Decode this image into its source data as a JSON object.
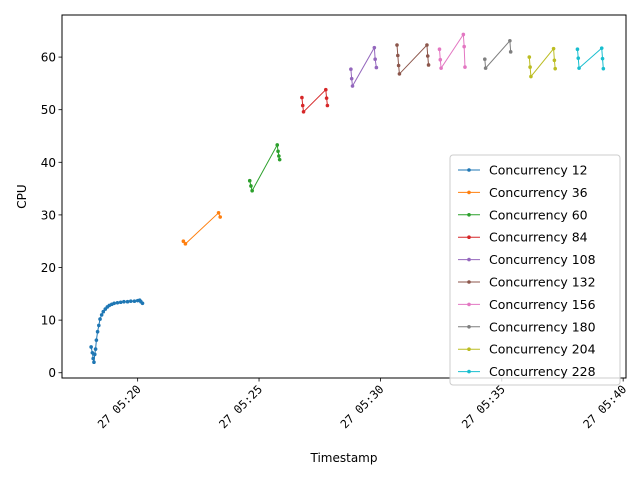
{
  "chart_data": {
    "type": "line",
    "title": "",
    "xlabel": "Timestamp",
    "ylabel": "CPU",
    "x_unit": "minutes",
    "xlim": [
      "27 05:16:53",
      "27 05:40:07"
    ],
    "ylim": [
      -1,
      68
    ],
    "x_ticks": [
      {
        "value": "27 05:20:00",
        "label": "27 05:20"
      },
      {
        "value": "27 05:25:00",
        "label": "27 05:25"
      },
      {
        "value": "27 05:30:00",
        "label": "27 05:30"
      },
      {
        "value": "27 05:35:00",
        "label": "27 05:35"
      },
      {
        "value": "27 05:40:00",
        "label": "27 05:40"
      }
    ],
    "y_ticks": [
      0,
      10,
      20,
      30,
      40,
      50,
      60
    ],
    "grid": false,
    "legend_position": "lower-right",
    "series": [
      {
        "name": "Concurrency 12",
        "color": "#1f77b4",
        "x": [
          "27 05:18:05",
          "27 05:18:08",
          "27 05:18:10",
          "27 05:18:12",
          "27 05:18:14",
          "27 05:18:16",
          "27 05:18:18",
          "27 05:18:21",
          "27 05:18:24",
          "27 05:18:27",
          "27 05:18:31",
          "27 05:18:35",
          "27 05:18:40",
          "27 05:18:45",
          "27 05:18:50",
          "27 05:18:56",
          "27 05:19:02",
          "27 05:19:10",
          "27 05:19:18",
          "27 05:19:26",
          "27 05:19:35",
          "27 05:19:43",
          "27 05:19:52",
          "27 05:20:00",
          "27 05:20:05",
          "27 05:20:08",
          "27 05:20:12"
        ],
        "values": [
          4.9,
          3.8,
          2.7,
          2.0,
          3.5,
          4.5,
          6.2,
          7.8,
          9.0,
          10.2,
          11.0,
          11.6,
          12.1,
          12.5,
          12.8,
          13.0,
          13.2,
          13.3,
          13.4,
          13.5,
          13.5,
          13.6,
          13.6,
          13.7,
          13.8,
          13.5,
          13.2
        ]
      },
      {
        "name": "Concurrency 36",
        "color": "#ff7f0e",
        "x": [
          "27 05:21:53",
          "27 05:21:58",
          "27 05:23:20",
          "27 05:23:24"
        ],
        "values": [
          25.0,
          24.5,
          30.4,
          29.6
        ]
      },
      {
        "name": "Concurrency 60",
        "color": "#2ca02c",
        "x": [
          "27 05:24:37",
          "27 05:24:40",
          "27 05:24:43",
          "27 05:25:45",
          "27 05:25:47",
          "27 05:25:49",
          "27 05:25:51"
        ],
        "values": [
          36.5,
          35.5,
          34.6,
          43.3,
          42.1,
          41.2,
          40.5
        ]
      },
      {
        "name": "Concurrency 84",
        "color": "#d62728",
        "x": [
          "27 05:26:46",
          "27 05:26:48",
          "27 05:26:50",
          "27 05:27:45",
          "27 05:27:47",
          "27 05:27:49"
        ],
        "values": [
          52.3,
          50.8,
          49.6,
          53.8,
          52.2,
          50.8
        ]
      },
      {
        "name": "Concurrency 108",
        "color": "#9467bd",
        "x": [
          "27 05:28:47",
          "27 05:28:49",
          "27 05:28:51",
          "27 05:29:45",
          "27 05:29:47",
          "27 05:29:50"
        ],
        "values": [
          57.7,
          55.9,
          54.5,
          61.8,
          59.6,
          58.0
        ]
      },
      {
        "name": "Concurrency 132",
        "color": "#8c564b",
        "x": [
          "27 05:30:41",
          "27 05:30:43",
          "27 05:30:45",
          "27 05:30:47",
          "27 05:31:55",
          "27 05:31:57",
          "27 05:31:59"
        ],
        "values": [
          62.3,
          60.3,
          58.4,
          56.8,
          62.3,
          60.2,
          58.5
        ]
      },
      {
        "name": "Concurrency 156",
        "color": "#e377c2",
        "x": [
          "27 05:32:26",
          "27 05:32:28",
          "27 05:32:30",
          "27 05:33:25",
          "27 05:33:27",
          "27 05:33:29"
        ],
        "values": [
          61.5,
          59.5,
          57.9,
          64.3,
          62.0,
          58.1
        ]
      },
      {
        "name": "Concurrency 180",
        "color": "#7f7f7f",
        "x": [
          "27 05:34:18",
          "27 05:34:20",
          "27 05:35:20",
          "27 05:35:22"
        ],
        "values": [
          59.6,
          57.9,
          63.1,
          61.0
        ]
      },
      {
        "name": "Concurrency 204",
        "color": "#bcbd22",
        "x": [
          "27 05:36:08",
          "27 05:36:10",
          "27 05:36:12",
          "27 05:37:08",
          "27 05:37:10",
          "27 05:37:12"
        ],
        "values": [
          60.0,
          58.1,
          56.3,
          61.6,
          59.4,
          57.8
        ]
      },
      {
        "name": "Concurrency 228",
        "color": "#17becf",
        "x": [
          "27 05:38:07",
          "27 05:38:09",
          "27 05:38:11",
          "27 05:39:07",
          "27 05:39:09",
          "27 05:39:11"
        ],
        "values": [
          61.5,
          59.8,
          57.9,
          61.7,
          59.7,
          57.8
        ]
      }
    ]
  }
}
